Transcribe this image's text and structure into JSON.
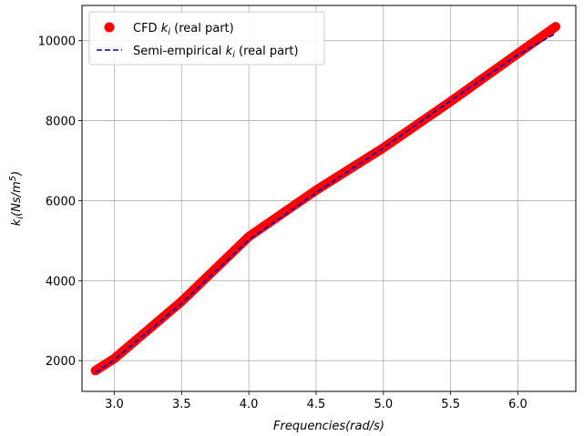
{
  "chart_data": {
    "type": "scatter",
    "xlabel": "Frequencies(rad/s)",
    "ylabel": {
      "main": "k",
      "sub": "i",
      "unit": "(Ns/m",
      "sup": "5",
      "close": ")"
    },
    "xlim": [
      2.76,
      6.43
    ],
    "ylim": [
      1230,
      10880
    ],
    "xticks": [
      3.0,
      3.5,
      4.0,
      4.5,
      5.0,
      5.5,
      6.0
    ],
    "xtick_labels": [
      "3.0",
      "3.5",
      "4.0",
      "4.5",
      "5.0",
      "5.5",
      "6.0"
    ],
    "yticks": [
      2000,
      4000,
      6000,
      8000,
      10000
    ],
    "ytick_labels": [
      "2000",
      "4000",
      "6000",
      "8000",
      "10000"
    ],
    "grid": true,
    "legend_position": "upper-left",
    "series": [
      {
        "name": {
          "pre": "CFD ",
          "var": "k",
          "sub": "i",
          "post": " (real part)"
        },
        "style": "markers",
        "color": "#ff0000",
        "x_range": [
          2.86,
          6.28
        ],
        "points": [
          [
            2.86,
            1750
          ],
          [
            3.0,
            2050
          ],
          [
            3.5,
            3480
          ],
          [
            4.0,
            5100
          ],
          [
            4.5,
            6260
          ],
          [
            5.0,
            7320
          ],
          [
            5.5,
            8480
          ],
          [
            6.0,
            9680
          ],
          [
            6.28,
            10350
          ]
        ]
      },
      {
        "name": {
          "pre": "Semi-empirical ",
          "var": "k",
          "sub": "i",
          "post": " (real part)"
        },
        "style": "dashed-line",
        "color": "#0000cc",
        "points": [
          [
            2.86,
            1700
          ],
          [
            3.0,
            2020
          ],
          [
            3.5,
            3430
          ],
          [
            4.0,
            5020
          ],
          [
            4.5,
            6200
          ],
          [
            5.0,
            7320
          ],
          [
            5.5,
            8500
          ],
          [
            6.0,
            9650
          ],
          [
            6.28,
            10180
          ]
        ]
      }
    ]
  }
}
